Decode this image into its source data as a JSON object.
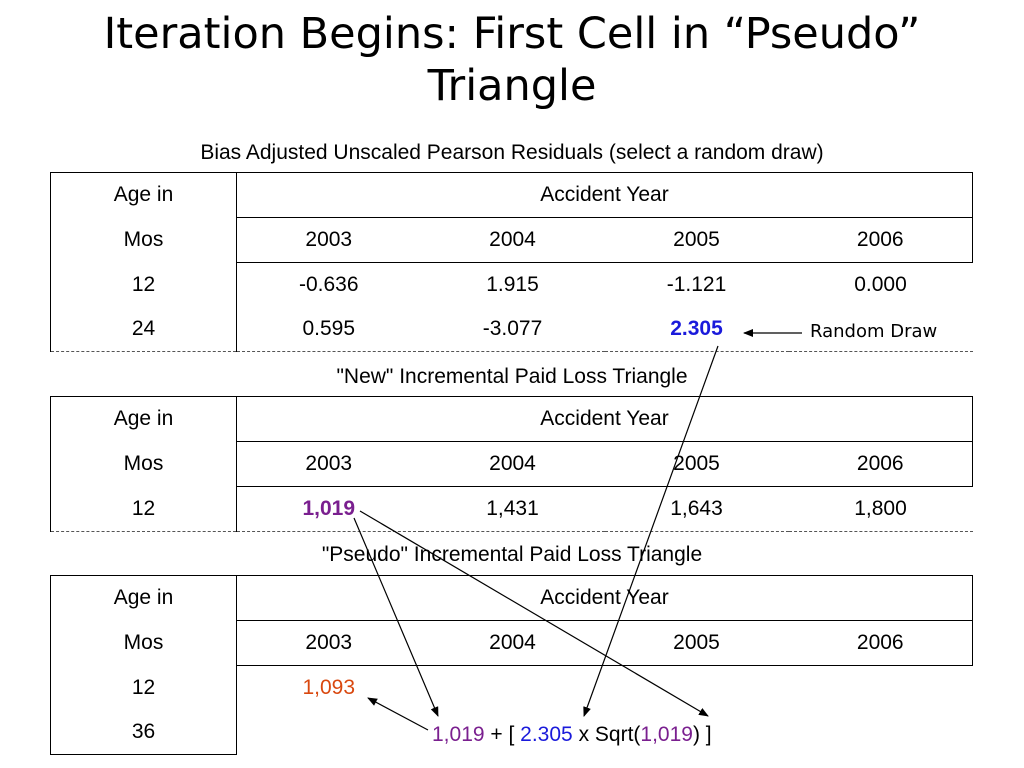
{
  "slide": {
    "title_line1": "Iteration Begins: First Cell in “Pseudo”",
    "title_line2": "Triangle"
  },
  "residuals": {
    "caption": "Bias Adjusted Unscaled Pearson Residuals (select a random draw)",
    "header_age_top": "Age in",
    "header_age_bottom": "Mos",
    "header_group": "Accident Year",
    "years": [
      "2003",
      "2004",
      "2005",
      "2006"
    ],
    "rows": [
      {
        "age": "12",
        "values": [
          "-0.636",
          "1.915",
          "-1.121",
          "0.000"
        ]
      },
      {
        "age": "24",
        "values": [
          "0.595",
          "-3.077",
          "2.305"
        ]
      }
    ],
    "annotation": "Random Draw"
  },
  "new_triangle": {
    "caption": "\"New\" Incremental Paid Loss Triangle",
    "header_age_top": "Age in",
    "header_age_bottom": "Mos",
    "header_group": "Accident Year",
    "years": [
      "2003",
      "2004",
      "2005",
      "2006"
    ],
    "rows": [
      {
        "age": "12",
        "values": [
          "1,019",
          "1,431",
          "1,643",
          "1,800"
        ]
      }
    ]
  },
  "pseudo_triangle": {
    "caption": "\"Pseudo\" Incremental Paid Loss Triangle",
    "header_age_top": "Age in",
    "header_age_bottom": "Mos",
    "header_group": "Accident Year",
    "years": [
      "2003",
      "2004",
      "2005",
      "2006"
    ],
    "rows": [
      {
        "age": "12",
        "values": [
          "1,093"
        ]
      },
      {
        "age": "36",
        "values": []
      }
    ],
    "formula": {
      "part1": "1,019",
      "part2": " + [ ",
      "part3": "2.305",
      "part4": " x Sqrt(",
      "part5": "1,019",
      "part6": ") ]"
    }
  },
  "colors": {
    "random_draw": "#1a1adb",
    "new_cell": "#7a1f8f",
    "pseudo_cell": "#d9480f"
  }
}
